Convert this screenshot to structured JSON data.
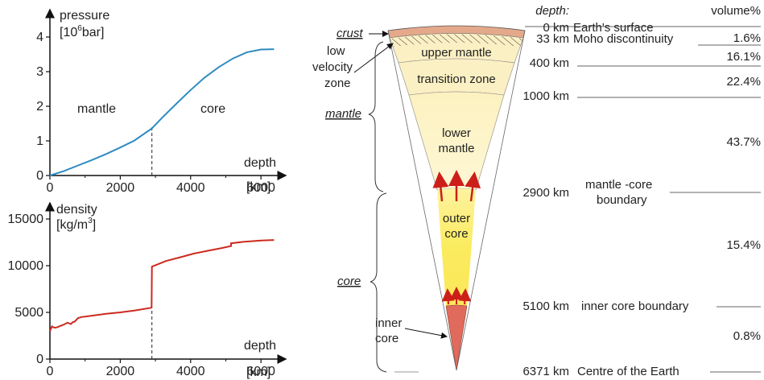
{
  "pressure_chart": {
    "ylabel_line1": "pressure",
    "ylabel_line2_pre": "[10",
    "ylabel_line2_sup": "6",
    "ylabel_line2_post": "bar]",
    "xlabel": "depth",
    "x_unit": "[km]",
    "region_mantle": "mantle",
    "region_core": "core"
  },
  "density_chart": {
    "ylabel_line1": "density",
    "ylabel_line2_pre": "[kg/m",
    "ylabel_line2_sup": "3",
    "ylabel_line2_post": "]",
    "xlabel": "depth",
    "x_unit": "[km]"
  },
  "chart_data": [
    {
      "type": "line",
      "title": "",
      "xlabel": "depth",
      "ylabel": "pressure [10^6 bar]",
      "xlim": [
        0,
        6500
      ],
      "ylim": [
        0,
        4
      ],
      "x_ticks": [
        "0",
        "2000",
        "4000",
        "6000"
      ],
      "y_ticks": [
        "0",
        "1",
        "2",
        "3",
        "4"
      ],
      "boundary_x": 2900,
      "series": [
        {
          "color": "#2e8bc0",
          "x": [
            0,
            400,
            800,
            1200,
            1600,
            2000,
            2400,
            2900,
            3200,
            3600,
            4000,
            4400,
            4800,
            5200,
            5600,
            6000,
            6371
          ],
          "y": [
            0,
            0.13,
            0.29,
            0.45,
            0.62,
            0.81,
            1.01,
            1.36,
            1.68,
            2.08,
            2.47,
            2.83,
            3.13,
            3.38,
            3.56,
            3.64,
            3.65
          ]
        }
      ]
    },
    {
      "type": "line",
      "title": "",
      "xlabel": "depth",
      "ylabel": "density [kg/m^3]",
      "xlim": [
        0,
        6500
      ],
      "ylim": [
        0,
        15000
      ],
      "x_ticks": [
        "0",
        "2000",
        "4000",
        "6000"
      ],
      "y_ticks": [
        "0",
        "5000",
        "10000",
        "15000"
      ],
      "boundary_x": 2900,
      "series": [
        {
          "color": "#cc2a1f",
          "x": [
            0,
            60,
            100,
            150,
            200,
            300,
            400,
            500,
            600,
            650,
            700,
            800,
            900,
            1200,
            1600,
            2000,
            2400,
            2890,
            2900,
            3300,
            3700,
            4100,
            4500,
            4900,
            5150,
            5150,
            5500,
            6000,
            6371
          ],
          "y": [
            3000,
            3500,
            3400,
            3350,
            3400,
            3550,
            3700,
            3900,
            3750,
            3950,
            4000,
            4400,
            4500,
            4650,
            4850,
            5000,
            5200,
            5500,
            9900,
            10500,
            10900,
            11300,
            11600,
            11900,
            12100,
            12400,
            12550,
            12700,
            12750
          ]
        }
      ]
    }
  ],
  "structure": {
    "depth_header": "depth:",
    "volume_header": "volume%",
    "layers": [
      {
        "name": "crust_upper_mantle",
        "depth": "0 km",
        "boundary": "Earth's surface",
        "volume": ""
      },
      {
        "depth": "33 km",
        "boundary": "Moho discontinuity",
        "volume": "1.6%"
      },
      {
        "depth": "400 km",
        "boundary": "",
        "volume": "16.1%"
      },
      {
        "depth": "1000 km",
        "boundary": "",
        "volume": "22.4%"
      },
      {
        "depth": "2900 km",
        "boundary": "mantle -core boundary",
        "volume": "43.7%"
      },
      {
        "depth": "5100 km",
        "boundary": "inner core boundary",
        "volume": "15.4%"
      },
      {
        "depth": "6371 km",
        "boundary": "Centre of the Earth",
        "volume": "0.8%"
      }
    ],
    "wedge_labels": {
      "upper_mantle": "upper mantle",
      "transition_zone": "transition zone",
      "lower_mantle_1": "lower",
      "lower_mantle_2": "mantle",
      "outer_core_1": "outer",
      "outer_core_2": "core",
      "inner_core_1": "inner",
      "inner_core_2": "core"
    },
    "side_labels": {
      "crust": "crust",
      "low_velocity_1": "low",
      "low_velocity_2": "velocity",
      "low_velocity_3": "zone",
      "mantle": "mantle",
      "core": "core"
    },
    "boundary_2900_line1": "mantle -core",
    "boundary_2900_line2": "boundary",
    "colors": {
      "crust": "#e4a98a",
      "upper_mantle": "#fbf0c4",
      "lower_mantle": "#fdf3c6",
      "outer_core": "#fbee7a",
      "inner_core": "#e06a5c",
      "arrows": "#cc1f1a"
    }
  }
}
